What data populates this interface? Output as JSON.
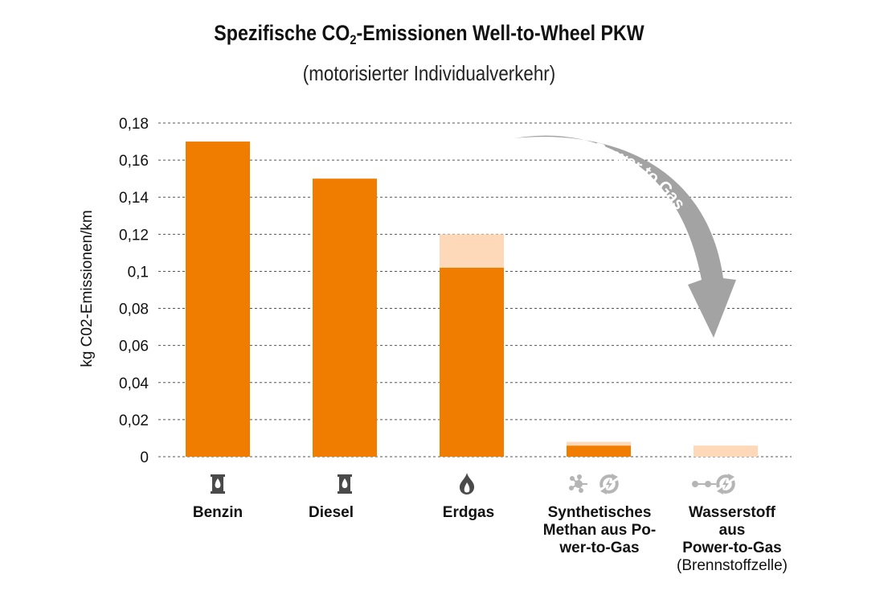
{
  "header": {
    "title_pre": "Spezifische CO",
    "title_sub": "2",
    "title_post": "-Emissionen Well-to-Wheel PKW",
    "subtitle": "(motorisierter Individualverkehr)"
  },
  "colors": {
    "main": "#f07d00",
    "light": "#fdd9b9",
    "arrow": "#a3a3a3",
    "icon_dark": "#4a4a4a",
    "icon_light": "#b5b5b5"
  },
  "annotation": {
    "arrow_label": "Power to Gas"
  },
  "chart_data": {
    "type": "bar",
    "stacked": true,
    "ylabel": "kg C02-Emissionen/km",
    "ylim": [
      0,
      0.18
    ],
    "yticks": [
      "0",
      "0,02",
      "0,04",
      "0,06",
      "0,08",
      "0,1",
      "0,12",
      "0,14",
      "0,16",
      "0,18"
    ],
    "grid": true,
    "categories": [
      {
        "lines": [
          "Benzin"
        ],
        "icon": "fuel-canister-icon"
      },
      {
        "lines": [
          "Diesel"
        ],
        "icon": "fuel-canister-icon"
      },
      {
        "lines": [
          "Erdgas"
        ],
        "icon": "flame-icon"
      },
      {
        "lines": [
          "Synthetisches",
          "Methan aus Po-",
          "wer-to-Gas"
        ],
        "icon": "methane-power-to-gas-icon"
      },
      {
        "lines": [
          "Wasserstoff",
          "aus",
          "Power-to-Gas"
        ],
        "sub": "(Brennstoffzelle)",
        "icon": "hydrogen-power-to-gas-icon"
      }
    ],
    "series": [
      {
        "color": "#f07d00",
        "values": [
          0.17,
          0.15,
          0.102,
          0.006,
          0
        ]
      },
      {
        "color": "#fdd9b9",
        "values": [
          0,
          0,
          0.018,
          0.002,
          0.006
        ]
      }
    ]
  }
}
